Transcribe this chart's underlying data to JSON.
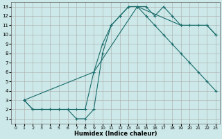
{
  "xlabel": "Humidex (Indice chaleur)",
  "xlim": [
    -0.5,
    23.5
  ],
  "ylim": [
    0.5,
    13.5
  ],
  "bg_color": "#cce8e8",
  "grid_color": "#aaaaaa",
  "line_color": "#1a6b6b",
  "line1_x": [
    1,
    2,
    3,
    4,
    5,
    6,
    7,
    8,
    9,
    10,
    11,
    12,
    13,
    14,
    15,
    16,
    17,
    18,
    19,
    20,
    21,
    22,
    23
  ],
  "line1_y": [
    3,
    2,
    2,
    2,
    2,
    2,
    1,
    1,
    2,
    8,
    11,
    12,
    13,
    13,
    13,
    12,
    13,
    12,
    11,
    11,
    11,
    11,
    10
  ],
  "line2_x": [
    1,
    2,
    3,
    4,
    5,
    6,
    7,
    8,
    9,
    10,
    11,
    12,
    13,
    14,
    15,
    16,
    17,
    18,
    19,
    20,
    21,
    22,
    23
  ],
  "line2_y": [
    3,
    2,
    2,
    2,
    2,
    2,
    2,
    2,
    6,
    9,
    11,
    12,
    13,
    13,
    12,
    11,
    10,
    9,
    8,
    7,
    6,
    5,
    4
  ],
  "line3_x": [
    1,
    9,
    14,
    19,
    22,
    23
  ],
  "line3_y": [
    3,
    6,
    13,
    11,
    11,
    10
  ],
  "xticks": [
    0,
    1,
    2,
    3,
    4,
    5,
    6,
    7,
    8,
    9,
    10,
    11,
    12,
    13,
    14,
    15,
    16,
    17,
    18,
    19,
    20,
    21,
    22,
    23
  ],
  "yticks": [
    1,
    2,
    3,
    4,
    5,
    6,
    7,
    8,
    9,
    10,
    11,
    12,
    13
  ]
}
